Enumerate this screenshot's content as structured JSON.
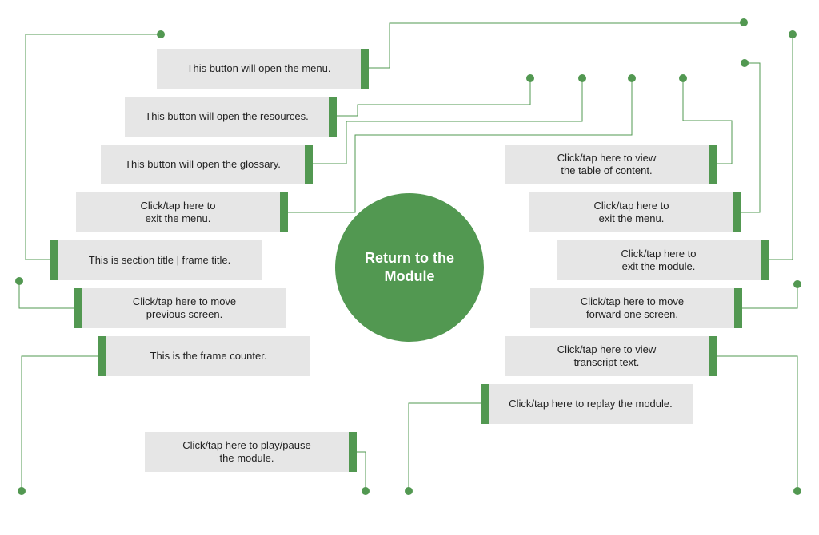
{
  "accent_color": "#529851",
  "box_color": "#e6e6e6",
  "return_button": {
    "label": "Return to the\nModule"
  },
  "callouts": {
    "menu": {
      "text": "This button will open the menu."
    },
    "resources": {
      "text": "This button will open the resources."
    },
    "glossary": {
      "text": "This button will open the glossary."
    },
    "exit_menu_left": {
      "text": "Click/tap here to\nexit the menu."
    },
    "section_title": {
      "text": "This is section title | frame title."
    },
    "previous": {
      "text": "Click/tap here to move\nprevious screen."
    },
    "counter": {
      "text": "This is the frame counter."
    },
    "play_pause": {
      "text": "Click/tap here to play/pause\nthe module."
    },
    "toc": {
      "text": "Click/tap here to view\nthe table of content."
    },
    "exit_menu_right": {
      "text": "Click/tap here to\nexit the menu."
    },
    "exit_module": {
      "text": "Click/tap here to\nexit the module."
    },
    "forward": {
      "text": "Click/tap here to move\nforward one screen."
    },
    "transcript": {
      "text": "Click/tap here to view\ntranscript text."
    },
    "replay": {
      "text": "Click/tap here to replay the module."
    }
  }
}
